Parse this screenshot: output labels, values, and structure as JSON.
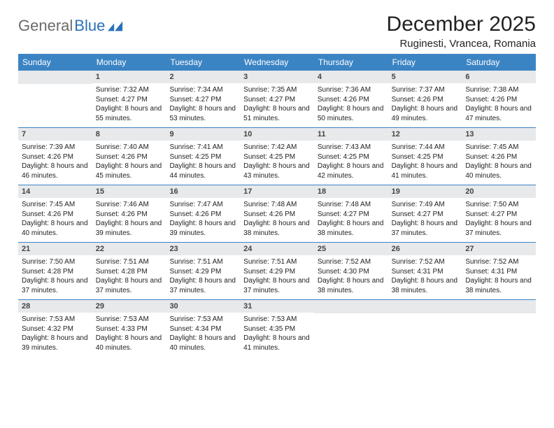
{
  "logo": {
    "text1": "General",
    "text2": "Blue"
  },
  "title": "December 2025",
  "location": "Ruginesti, Vrancea, Romania",
  "colors": {
    "header_bg": "#3b84c4",
    "header_text": "#ffffff",
    "daynum_bg": "#e7e9eb",
    "text": "#222222",
    "logo_gray": "#6b6b6b",
    "logo_blue": "#2a71b8"
  },
  "dow": [
    "Sunday",
    "Monday",
    "Tuesday",
    "Wednesday",
    "Thursday",
    "Friday",
    "Saturday"
  ],
  "weeks": [
    [
      null,
      {
        "n": "1",
        "sr": "7:32 AM",
        "ss": "4:27 PM",
        "dl": "8 hours and 55 minutes."
      },
      {
        "n": "2",
        "sr": "7:34 AM",
        "ss": "4:27 PM",
        "dl": "8 hours and 53 minutes."
      },
      {
        "n": "3",
        "sr": "7:35 AM",
        "ss": "4:27 PM",
        "dl": "8 hours and 51 minutes."
      },
      {
        "n": "4",
        "sr": "7:36 AM",
        "ss": "4:26 PM",
        "dl": "8 hours and 50 minutes."
      },
      {
        "n": "5",
        "sr": "7:37 AM",
        "ss": "4:26 PM",
        "dl": "8 hours and 49 minutes."
      },
      {
        "n": "6",
        "sr": "7:38 AM",
        "ss": "4:26 PM",
        "dl": "8 hours and 47 minutes."
      }
    ],
    [
      {
        "n": "7",
        "sr": "7:39 AM",
        "ss": "4:26 PM",
        "dl": "8 hours and 46 minutes."
      },
      {
        "n": "8",
        "sr": "7:40 AM",
        "ss": "4:26 PM",
        "dl": "8 hours and 45 minutes."
      },
      {
        "n": "9",
        "sr": "7:41 AM",
        "ss": "4:25 PM",
        "dl": "8 hours and 44 minutes."
      },
      {
        "n": "10",
        "sr": "7:42 AM",
        "ss": "4:25 PM",
        "dl": "8 hours and 43 minutes."
      },
      {
        "n": "11",
        "sr": "7:43 AM",
        "ss": "4:25 PM",
        "dl": "8 hours and 42 minutes."
      },
      {
        "n": "12",
        "sr": "7:44 AM",
        "ss": "4:25 PM",
        "dl": "8 hours and 41 minutes."
      },
      {
        "n": "13",
        "sr": "7:45 AM",
        "ss": "4:26 PM",
        "dl": "8 hours and 40 minutes."
      }
    ],
    [
      {
        "n": "14",
        "sr": "7:45 AM",
        "ss": "4:26 PM",
        "dl": "8 hours and 40 minutes."
      },
      {
        "n": "15",
        "sr": "7:46 AM",
        "ss": "4:26 PM",
        "dl": "8 hours and 39 minutes."
      },
      {
        "n": "16",
        "sr": "7:47 AM",
        "ss": "4:26 PM",
        "dl": "8 hours and 39 minutes."
      },
      {
        "n": "17",
        "sr": "7:48 AM",
        "ss": "4:26 PM",
        "dl": "8 hours and 38 minutes."
      },
      {
        "n": "18",
        "sr": "7:48 AM",
        "ss": "4:27 PM",
        "dl": "8 hours and 38 minutes."
      },
      {
        "n": "19",
        "sr": "7:49 AM",
        "ss": "4:27 PM",
        "dl": "8 hours and 37 minutes."
      },
      {
        "n": "20",
        "sr": "7:50 AM",
        "ss": "4:27 PM",
        "dl": "8 hours and 37 minutes."
      }
    ],
    [
      {
        "n": "21",
        "sr": "7:50 AM",
        "ss": "4:28 PM",
        "dl": "8 hours and 37 minutes."
      },
      {
        "n": "22",
        "sr": "7:51 AM",
        "ss": "4:28 PM",
        "dl": "8 hours and 37 minutes."
      },
      {
        "n": "23",
        "sr": "7:51 AM",
        "ss": "4:29 PM",
        "dl": "8 hours and 37 minutes."
      },
      {
        "n": "24",
        "sr": "7:51 AM",
        "ss": "4:29 PM",
        "dl": "8 hours and 37 minutes."
      },
      {
        "n": "25",
        "sr": "7:52 AM",
        "ss": "4:30 PM",
        "dl": "8 hours and 38 minutes."
      },
      {
        "n": "26",
        "sr": "7:52 AM",
        "ss": "4:31 PM",
        "dl": "8 hours and 38 minutes."
      },
      {
        "n": "27",
        "sr": "7:52 AM",
        "ss": "4:31 PM",
        "dl": "8 hours and 38 minutes."
      }
    ],
    [
      {
        "n": "28",
        "sr": "7:53 AM",
        "ss": "4:32 PM",
        "dl": "8 hours and 39 minutes."
      },
      {
        "n": "29",
        "sr": "7:53 AM",
        "ss": "4:33 PM",
        "dl": "8 hours and 40 minutes."
      },
      {
        "n": "30",
        "sr": "7:53 AM",
        "ss": "4:34 PM",
        "dl": "8 hours and 40 minutes."
      },
      {
        "n": "31",
        "sr": "7:53 AM",
        "ss": "4:35 PM",
        "dl": "8 hours and 41 minutes."
      },
      null,
      null,
      null
    ]
  ],
  "labels": {
    "sunrise": "Sunrise:",
    "sunset": "Sunset:",
    "daylight": "Daylight:"
  }
}
